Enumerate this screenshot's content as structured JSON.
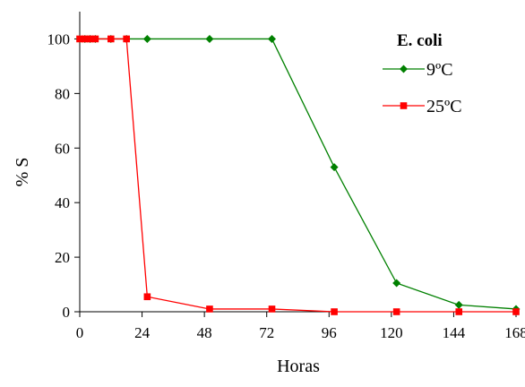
{
  "chart_data": {
    "type": "line",
    "title": "",
    "xlabel": "Horas",
    "ylabel": "% S",
    "xlim": [
      0,
      168
    ],
    "ylim": [
      0,
      110
    ],
    "xticks": [
      0,
      24,
      48,
      72,
      96,
      120,
      144,
      168
    ],
    "yticks": [
      0,
      20,
      40,
      60,
      80,
      100
    ],
    "grid": false,
    "legend": {
      "title": "E. coli",
      "position": "top-right"
    },
    "series": [
      {
        "name": "9ºC",
        "color": "#008000",
        "marker": "diamond",
        "x": [
          0,
          2,
          4,
          6,
          12,
          18,
          26,
          50,
          74,
          98,
          122,
          146,
          168
        ],
        "y": [
          100,
          100,
          100,
          100,
          100,
          100,
          100,
          100,
          100,
          53,
          10.5,
          2.5,
          1
        ]
      },
      {
        "name": "25ºC",
        "color": "#ff0000",
        "marker": "square",
        "x": [
          0,
          2,
          4,
          6,
          12,
          18,
          26,
          50,
          74,
          98,
          122,
          146,
          168
        ],
        "y": [
          100,
          100,
          100,
          100,
          100,
          100,
          5.5,
          1,
          1,
          0,
          0,
          0,
          0
        ]
      }
    ]
  }
}
